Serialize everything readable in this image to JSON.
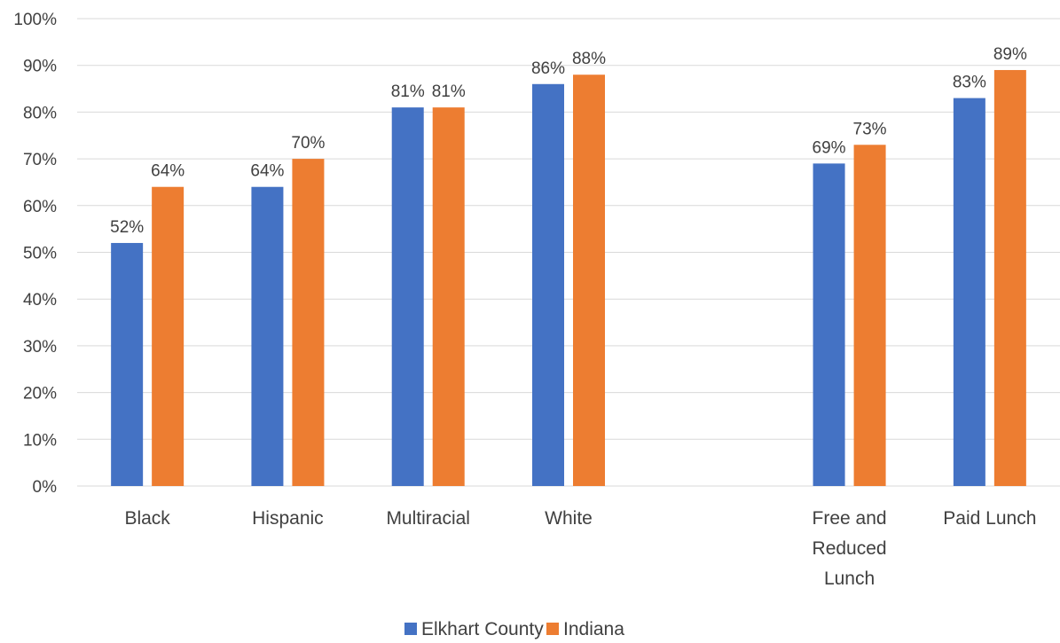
{
  "chart_data": {
    "type": "bar",
    "categories": [
      "Black",
      "Hispanic",
      "Multiracial",
      "White",
      "",
      "Free and Reduced Lunch",
      "Paid Lunch"
    ],
    "category_label_lines": [
      [
        "Black"
      ],
      [
        "Hispanic"
      ],
      [
        "Multiracial"
      ],
      [
        "White"
      ],
      [],
      [
        "Free and",
        "Reduced",
        "Lunch"
      ],
      [
        "Paid Lunch"
      ]
    ],
    "series": [
      {
        "name": "Elkhart County",
        "color": "#4472C4",
        "values": [
          52,
          64,
          81,
          86,
          null,
          69,
          83
        ],
        "labels": [
          "52%",
          "64%",
          "81%",
          "86%",
          "",
          "69%",
          "83%"
        ]
      },
      {
        "name": "Indiana",
        "color": "#ED7D31",
        "values": [
          64,
          70,
          81,
          88,
          null,
          73,
          89
        ],
        "labels": [
          "64%",
          "70%",
          "81%",
          "88%",
          "",
          "73%",
          "89%"
        ]
      }
    ],
    "y_ticks": [
      "0%",
      "10%",
      "20%",
      "30%",
      "40%",
      "50%",
      "60%",
      "70%",
      "80%",
      "90%",
      "100%"
    ],
    "ylim": [
      0,
      100
    ],
    "y_unit": "%",
    "grid": true,
    "legend_position": "bottom",
    "grid_color": "#D9D9D9"
  }
}
